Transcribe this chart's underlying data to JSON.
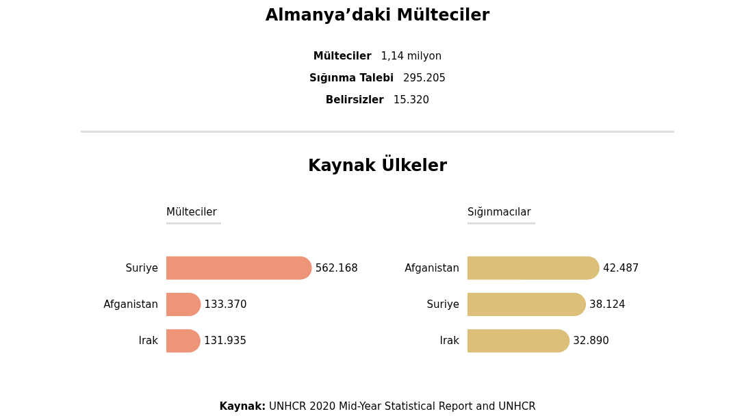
{
  "chart_data": [
    {
      "type": "other",
      "title": "Almanya’daki Mülteciler",
      "annotations": [
        "Mülteciler",
        "1,14 milyon",
        "Sığınma Talebi",
        "295.205",
        "Belirsizler",
        "15.320"
      ]
    },
    {
      "type": "other",
      "title": "Kaynak Ülkeler",
      "annotations": [
        "Kaynak: UNHCR 2020 Mid-Year Statistical Report and UNHCR"
      ]
    },
    {
      "type": "bar",
      "orientation": "horizontal",
      "title": "Mülteciler",
      "categories": [
        "Suriye",
        "Afganistan",
        "Irak"
      ],
      "values": [
        562168,
        133370,
        131935
      ],
      "value_labels": [
        "562.168",
        "133.370",
        "131.935"
      ],
      "color": "#ee9478"
    },
    {
      "type": "bar",
      "orientation": "horizontal",
      "title": "Sığınmacılar",
      "categories": [
        "Afganistan",
        "Suriye",
        "Irak"
      ],
      "values": [
        42487,
        38124,
        32890
      ],
      "value_labels": [
        "42.487",
        "38.124",
        "32.890"
      ],
      "color": "#dcc07a"
    }
  ]
}
